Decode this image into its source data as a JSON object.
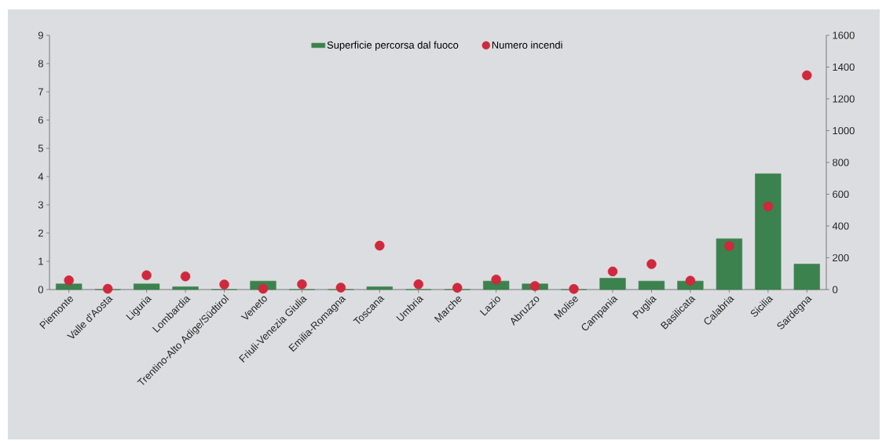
{
  "chart_data": {
    "type": "bar",
    "categories": [
      "Piemonte",
      "Valle d'Aosta",
      "Liguria",
      "Lombardia",
      "Trentino-Alto Adige/Südtirol",
      "Veneto",
      "Friuli-Venezia Giulia",
      "Emilia-Romagna",
      "Toscana",
      "Umbria",
      "Marche",
      "Lazio",
      "Abruzzo",
      "Molise",
      "Campania",
      "Puglia",
      "Basilicata",
      "Calabria",
      "Sicilia",
      "Sardegna"
    ],
    "series": [
      {
        "name": "Superficie percorsa dal fuoco",
        "color": "#3b824f",
        "values": [
          0.2,
          0,
          0.2,
          0.1,
          0,
          0.3,
          0,
          0,
          0.1,
          0,
          0,
          0.3,
          0.2,
          0,
          0.4,
          0.3,
          0.3,
          1.8,
          4.1,
          0.9
        ]
      },
      {
        "name": "Numero incendi",
        "type": "scatter",
        "axis": "y2",
        "color": "#d0283c",
        "values": [
          58,
          5,
          90,
          83,
          32,
          5,
          33,
          12,
          276,
          33,
          11,
          63,
          22,
          4,
          114,
          160,
          56,
          274,
          523,
          1348
        ]
      }
    ],
    "ylim": [
      0,
      9
    ],
    "yticks": [
      0,
      1,
      2,
      3,
      4,
      5,
      6,
      7,
      8,
      9
    ],
    "y2lim": [
      0,
      1600
    ],
    "y2ticks": [
      0,
      200,
      400,
      600,
      800,
      1000,
      1200,
      1400,
      1600
    ],
    "legend": "top",
    "marker": "circle",
    "grid": false
  }
}
